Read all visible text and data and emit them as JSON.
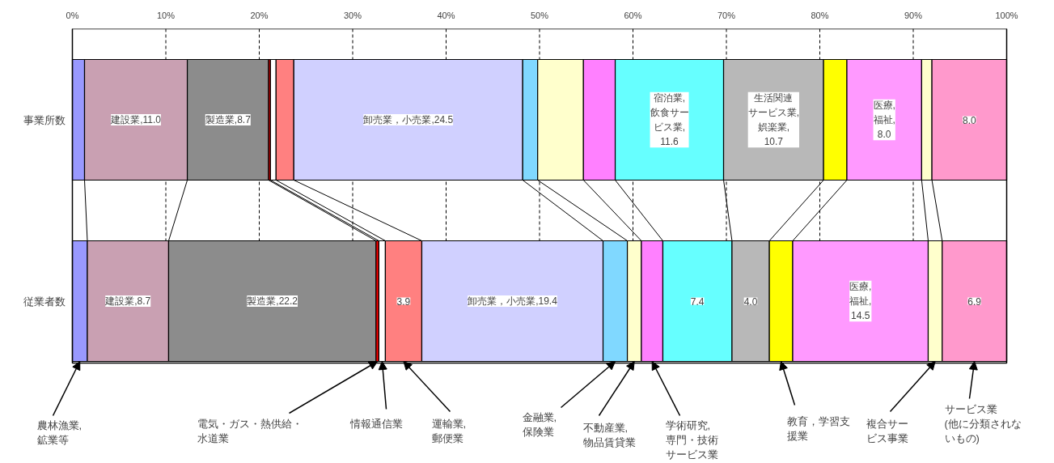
{
  "chart_data": {
    "type": "bar",
    "orientation": "horizontal",
    "stacked": true,
    "categories": [
      "事業所数",
      "従業者数"
    ],
    "xlim": [
      0,
      100
    ],
    "xticks": [
      {
        "value": 0,
        "label": "0%"
      },
      {
        "value": 10,
        "label": "10%"
      },
      {
        "value": 20,
        "label": "20%"
      },
      {
        "value": 30,
        "label": "30%"
      },
      {
        "value": 40,
        "label": "40%"
      },
      {
        "value": 50,
        "label": "50%"
      },
      {
        "value": 60,
        "label": "60%"
      },
      {
        "value": 70,
        "label": "70%"
      },
      {
        "value": 80,
        "label": "80%"
      },
      {
        "value": 90,
        "label": "90%"
      },
      {
        "value": 100,
        "label": "100%"
      }
    ],
    "grid": "x",
    "series": [
      {
        "name": "農林漁業,鉱業等",
        "color": "#9999ff",
        "values": [
          1.3,
          1.6
        ]
      },
      {
        "color": "#c9a0b2",
        "values": [
          11.0,
          8.7
        ],
        "value_labels": [
          "建設業,11.0",
          "建設業,8.7"
        ]
      },
      {
        "color": "#8c8c8c",
        "values": [
          8.7,
          22.2
        ],
        "value_labels": [
          "製造業,8.7",
          "製造業,22.2"
        ]
      },
      {
        "name": "電気・ガス・熱供給・水道業",
        "color": "#ff0000",
        "values": [
          0.2,
          0.3
        ]
      },
      {
        "name": "情報通信業",
        "color": "#ffffff",
        "values": [
          0.6,
          0.7
        ]
      },
      {
        "name": "運輸業,郵便業",
        "color": "#ff8080",
        "values": [
          1.9,
          3.9
        ],
        "value_labels": [
          null,
          "3.9"
        ]
      },
      {
        "color": "#d0d0ff",
        "values": [
          24.5,
          19.4
        ],
        "value_labels": [
          "卸売業，小売業,24.5",
          "卸売業，小売業,19.4"
        ]
      },
      {
        "name": "金融業,保険業",
        "color": "#80d8ff",
        "values": [
          1.6,
          2.6
        ]
      },
      {
        "name": "不動産業,物品賃貸業",
        "color": "#ffffcc",
        "values": [
          4.9,
          1.5
        ]
      },
      {
        "name": "学術研究,専門・技術サービス業",
        "color": "#ff80ff",
        "values": [
          3.4,
          2.3
        ]
      },
      {
        "color": "#66ffff",
        "values": [
          11.6,
          7.4
        ],
        "value_labels": [
          "宿泊業,飲食サービス業,11.6",
          "7.4"
        ]
      },
      {
        "color": "#b8b8b8",
        "values": [
          10.7,
          4.0
        ],
        "value_labels": [
          "生活関連サービス業,娯楽業,10.7",
          "4.0"
        ]
      },
      {
        "name": "教育，学習支援業",
        "color": "#ffff00",
        "values": [
          2.5,
          2.5
        ]
      },
      {
        "color": "#ff99ff",
        "values": [
          8.0,
          14.5
        ],
        "value_labels": [
          "医療,福祉,8.0",
          "医療,福祉,14.5"
        ]
      },
      {
        "name": "複合サービス事業",
        "color": "#ffffcc",
        "values": [
          1.1,
          1.5
        ]
      },
      {
        "name": "サービス業(他に分類されないもの)",
        "color": "#ff99cc",
        "values": [
          8.0,
          6.9
        ],
        "value_labels": [
          "8.0",
          "6.9"
        ]
      }
    ]
  }
}
